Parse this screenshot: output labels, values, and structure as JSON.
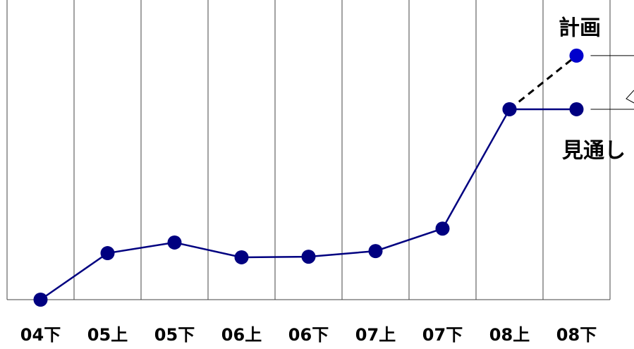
{
  "chart_data": {
    "type": "line",
    "categories": [
      "04下",
      "05上",
      "05下",
      "06上",
      "06下",
      "07上",
      "07下",
      "08上",
      "08下"
    ],
    "series": [
      {
        "name": "見通し",
        "color": "#000080",
        "dash": false,
        "values": [
          0,
          15.7,
          19.3,
          14.3,
          14.5,
          16.4,
          24,
          64.3,
          64.3
        ]
      },
      {
        "name": "計画",
        "color": "#0000cc",
        "dash": true,
        "values": [
          null,
          null,
          null,
          null,
          null,
          null,
          null,
          64.3,
          82.4
        ]
      }
    ],
    "ylim": [
      0,
      100
    ]
  }
}
